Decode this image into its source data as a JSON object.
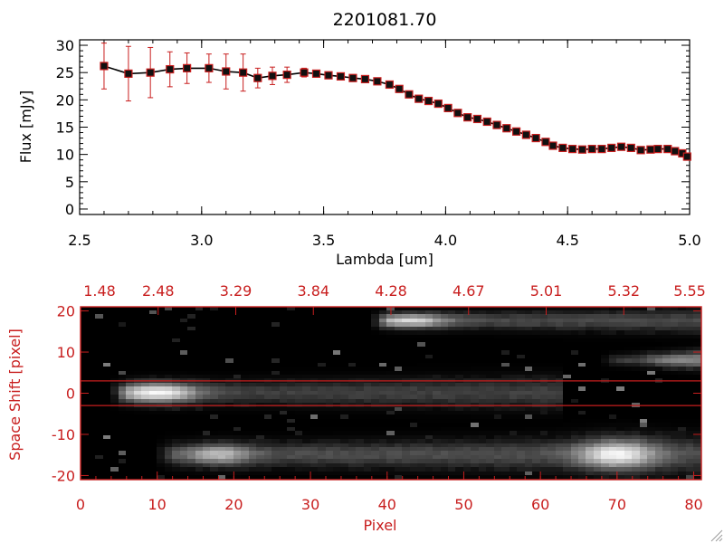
{
  "colors": {
    "axis": "#000000",
    "accent": "#c81e1e",
    "marker": "#c81e1e",
    "line": "#000000"
  },
  "chart_data": [
    {
      "type": "line",
      "title": "2201081.70",
      "xlabel": "Lambda [um]",
      "ylabel": "Flux [mJy]",
      "xlim": [
        2.5,
        5.0
      ],
      "ylim": [
        -1,
        31
      ],
      "xticks": [
        "2.5",
        "3.0",
        "3.5",
        "4.0",
        "4.5",
        "5.0"
      ],
      "xtick_values": [
        2.5,
        3.0,
        3.5,
        4.0,
        4.5,
        5.0
      ],
      "yticks": [
        "0",
        "5",
        "10",
        "15",
        "20",
        "25",
        "30"
      ],
      "ytick_values": [
        0,
        5,
        10,
        15,
        20,
        25,
        30
      ],
      "series": [
        {
          "name": "Flux",
          "x": [
            2.6,
            2.7,
            2.79,
            2.87,
            2.94,
            3.03,
            3.1,
            3.17,
            3.23,
            3.29,
            3.35,
            3.42,
            3.47,
            3.52,
            3.57,
            3.62,
            3.67,
            3.72,
            3.77,
            3.81,
            3.85,
            3.89,
            3.93,
            3.97,
            4.01,
            4.05,
            4.09,
            4.13,
            4.17,
            4.21,
            4.25,
            4.29,
            4.33,
            4.37,
            4.41,
            4.44,
            4.48,
            4.52,
            4.56,
            4.6,
            4.64,
            4.68,
            4.72,
            4.76,
            4.8,
            4.84,
            4.87,
            4.91,
            4.94,
            4.97,
            4.99
          ],
          "y": [
            26.2,
            24.8,
            25.0,
            25.6,
            25.8,
            25.8,
            25.2,
            25.0,
            24.0,
            24.4,
            24.6,
            25.0,
            24.8,
            24.5,
            24.3,
            24.0,
            23.8,
            23.4,
            22.8,
            22.0,
            21.0,
            20.2,
            19.8,
            19.3,
            18.5,
            17.6,
            16.8,
            16.5,
            16.0,
            15.4,
            14.8,
            14.2,
            13.6,
            13.0,
            12.3,
            11.6,
            11.2,
            11.0,
            10.9,
            11.0,
            11.0,
            11.2,
            11.4,
            11.2,
            10.8,
            10.9,
            11.0,
            11.0,
            10.6,
            10.2,
            9.6
          ],
          "err": [
            4.2,
            5.0,
            4.6,
            3.2,
            2.8,
            2.6,
            3.2,
            3.4,
            1.8,
            1.6,
            1.4,
            0.8,
            0.6,
            0.4,
            0.3,
            0.3,
            0.3,
            0.3,
            0.3,
            0.3,
            0.3,
            0.3,
            0.3,
            0.3,
            0.3,
            0.3,
            0.3,
            0.3,
            0.3,
            0.3,
            0.3,
            0.3,
            0.3,
            0.3,
            0.3,
            0.3,
            0.3,
            0.3,
            0.3,
            0.3,
            0.3,
            0.3,
            0.3,
            0.3,
            0.3,
            0.3,
            0.3,
            0.3,
            0.3,
            0.3,
            0.3
          ]
        }
      ]
    },
    {
      "type": "heatmap",
      "xlabel": "Pixel",
      "ylabel": "Space Shift [pixel]",
      "xlim": [
        0,
        81
      ],
      "ylim": [
        -21,
        21
      ],
      "xticks": [
        "0",
        "10",
        "20",
        "30",
        "40",
        "50",
        "60",
        "70",
        "80"
      ],
      "xtick_values": [
        0,
        10,
        20,
        30,
        40,
        50,
        60,
        70,
        80
      ],
      "yticks": [
        "-20",
        "-10",
        "0",
        "10",
        "20"
      ],
      "ytick_values": [
        -20,
        -10,
        0,
        10,
        20
      ],
      "top_axis_labels": [
        "1.48",
        "2.48",
        "3.29",
        "3.84",
        "4.28",
        "4.67",
        "5.01",
        "5.32",
        "5.55"
      ],
      "extraction_lines": [
        3,
        -3
      ],
      "traces": [
        {
          "name": "central source",
          "x0": 6,
          "x1": 62,
          "y": 0,
          "peak_x": 10,
          "peak": 1.0,
          "end_level": 0.25,
          "width": 2.2
        },
        {
          "name": "upper source",
          "x0": 40,
          "x1": 80,
          "y": 17.5,
          "peak_x": 43,
          "peak": 0.85,
          "end_level": 0.28,
          "width": 1.6
        },
        {
          "name": "lower source",
          "x0": 12,
          "x1": 81,
          "y": -15,
          "peak_x": 70,
          "peak": 0.98,
          "end_level": 0.3,
          "width": 2.4,
          "secondary_peak_x": 18,
          "secondary_peak": 0.75
        },
        {
          "name": "right faint source",
          "x0": 70,
          "x1": 81,
          "y": 8,
          "peak_x": 79,
          "peak": 0.55,
          "end_level": 0.2,
          "width": 1.2
        }
      ]
    }
  ]
}
